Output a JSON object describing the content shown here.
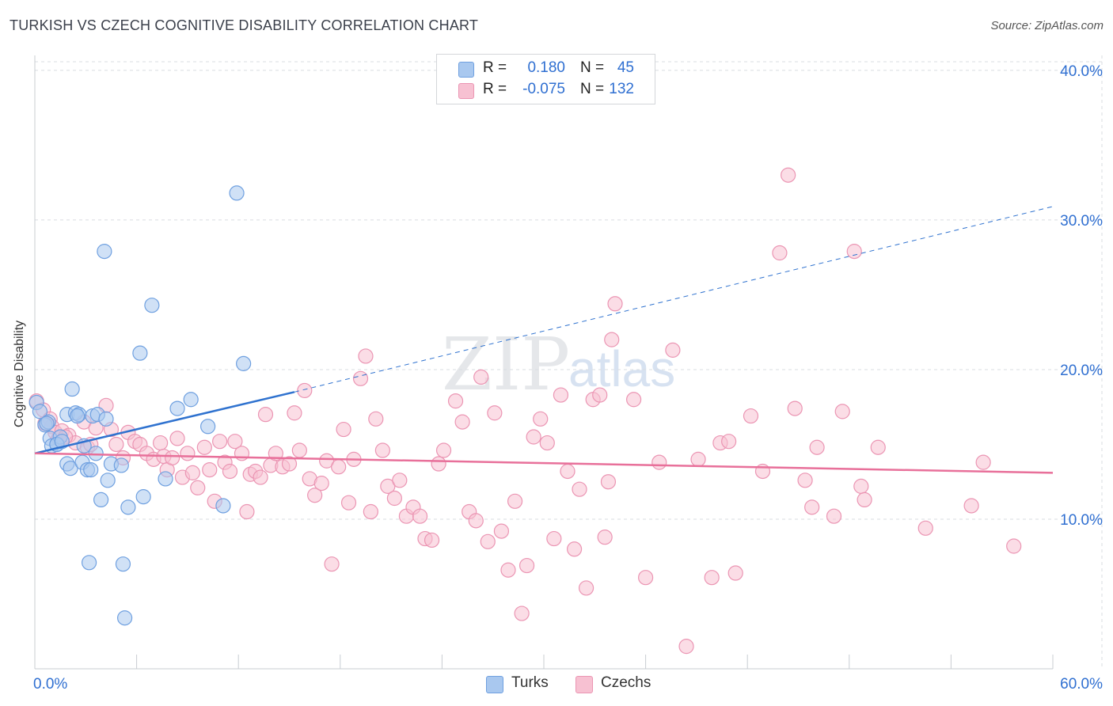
{
  "header": {
    "title": "TURKISH VS CZECH COGNITIVE DISABILITY CORRELATION CHART",
    "source": "Source: ZipAtlas.com"
  },
  "watermark": {
    "zip": "ZIP",
    "atlas": "atlas"
  },
  "stats": {
    "turks": {
      "r_label": "R =",
      "r_value": "0.180",
      "n_label": "N =",
      "n_value": "45"
    },
    "czechs": {
      "r_label": "R =",
      "r_value": "-0.075",
      "n_label": "N =",
      "n_value": "132"
    }
  },
  "legend": {
    "turks": "Turks",
    "czechs": "Czechs"
  },
  "colors": {
    "turks_fill": "#a9c8ef",
    "turks_stroke": "#6fa0e0",
    "turks_line": "#2f72cf",
    "czechs_fill": "#f7c1d2",
    "czechs_stroke": "#eb95b3",
    "czechs_line": "#e8709a",
    "axis_text": "#2f6fd1",
    "grid": "#d9dce1"
  },
  "chart_data": {
    "type": "scatter",
    "title": "TURKISH VS CZECH COGNITIVE DISABILITY CORRELATION CHART",
    "xlabel": "",
    "ylabel": "Cognitive Disability",
    "xlim": [
      0,
      60
    ],
    "ylim": [
      0,
      41
    ],
    "x_tick_labels": [
      "0.0%",
      "60.0%"
    ],
    "y_ticks": [
      10,
      20,
      30,
      40
    ],
    "y_tick_labels": [
      "10.0%",
      "20.0%",
      "30.0%",
      "40.0%"
    ],
    "series": [
      {
        "name": "Turks",
        "trend": {
          "x": [
            0,
            15.3
          ],
          "y": [
            14.4,
            18.5
          ],
          "dashed_to": [
            60,
            30.9
          ]
        },
        "points": [
          [
            0.1,
            17.8
          ],
          [
            0.3,
            17.2
          ],
          [
            0.6,
            16.3
          ],
          [
            0.8,
            16.5
          ],
          [
            0.9,
            15.4
          ],
          [
            1.0,
            14.9
          ],
          [
            1.3,
            15.0
          ],
          [
            1.5,
            15.5
          ],
          [
            1.9,
            13.7
          ],
          [
            2.1,
            13.4
          ],
          [
            1.9,
            17.0
          ],
          [
            2.2,
            18.7
          ],
          [
            2.4,
            17.1
          ],
          [
            2.6,
            17.0
          ],
          [
            2.8,
            13.8
          ],
          [
            2.9,
            14.9
          ],
          [
            3.1,
            13.3
          ],
          [
            3.3,
            13.3
          ],
          [
            3.4,
            16.9
          ],
          [
            3.6,
            14.4
          ],
          [
            3.7,
            17.0
          ],
          [
            3.9,
            11.3
          ],
          [
            4.2,
            16.7
          ],
          [
            4.3,
            12.6
          ],
          [
            4.5,
            13.7
          ],
          [
            4.1,
            27.9
          ],
          [
            5.1,
            13.6
          ],
          [
            5.5,
            10.8
          ],
          [
            6.2,
            21.1
          ],
          [
            6.4,
            11.5
          ],
          [
            6.9,
            24.3
          ],
          [
            7.7,
            12.7
          ],
          [
            8.4,
            17.4
          ],
          [
            9.2,
            18.0
          ],
          [
            10.2,
            16.2
          ],
          [
            11.1,
            10.9
          ],
          [
            11.9,
            31.8
          ],
          [
            12.3,
            20.4
          ],
          [
            3.2,
            7.1
          ],
          [
            5.2,
            7.0
          ],
          [
            5.3,
            3.4
          ],
          [
            1.3,
            15.0
          ],
          [
            0.7,
            16.4
          ],
          [
            2.5,
            16.9
          ],
          [
            1.6,
            15.2
          ]
        ]
      },
      {
        "name": "Czechs",
        "trend": {
          "x": [
            0,
            60
          ],
          "y": [
            14.4,
            13.1
          ]
        },
        "points": [
          [
            0.1,
            17.9
          ],
          [
            0.5,
            17.3
          ],
          [
            0.9,
            16.7
          ],
          [
            1.0,
            16.2
          ],
          [
            1.2,
            15.8
          ],
          [
            1.4,
            15.4
          ],
          [
            1.6,
            15.9
          ],
          [
            2.0,
            15.6
          ],
          [
            2.4,
            15.1
          ],
          [
            2.9,
            16.5
          ],
          [
            3.1,
            14.8
          ],
          [
            3.3,
            15.0
          ],
          [
            3.6,
            16.1
          ],
          [
            4.2,
            17.6
          ],
          [
            4.5,
            16.0
          ],
          [
            4.8,
            15.0
          ],
          [
            5.2,
            14.1
          ],
          [
            5.5,
            15.8
          ],
          [
            5.9,
            15.2
          ],
          [
            6.2,
            15.0
          ],
          [
            6.6,
            14.4
          ],
          [
            7.0,
            14.0
          ],
          [
            7.4,
            15.1
          ],
          [
            7.6,
            14.2
          ],
          [
            7.8,
            13.3
          ],
          [
            8.1,
            14.1
          ],
          [
            8.4,
            15.4
          ],
          [
            8.7,
            12.8
          ],
          [
            9.0,
            14.4
          ],
          [
            9.3,
            13.1
          ],
          [
            9.6,
            12.1
          ],
          [
            10.0,
            14.8
          ],
          [
            10.3,
            13.3
          ],
          [
            10.6,
            11.2
          ],
          [
            10.9,
            15.2
          ],
          [
            11.2,
            13.8
          ],
          [
            11.5,
            13.2
          ],
          [
            11.8,
            15.2
          ],
          [
            12.2,
            14.4
          ],
          [
            12.5,
            10.5
          ],
          [
            12.7,
            13.0
          ],
          [
            13.0,
            13.2
          ],
          [
            13.3,
            12.8
          ],
          [
            13.6,
            17.0
          ],
          [
            13.9,
            13.6
          ],
          [
            14.2,
            14.4
          ],
          [
            14.6,
            13.5
          ],
          [
            15.0,
            13.7
          ],
          [
            15.3,
            17.1
          ],
          [
            15.6,
            14.6
          ],
          [
            15.9,
            18.6
          ],
          [
            16.2,
            12.7
          ],
          [
            16.5,
            11.6
          ],
          [
            16.9,
            12.4
          ],
          [
            17.2,
            13.9
          ],
          [
            17.5,
            7.0
          ],
          [
            17.9,
            13.5
          ],
          [
            18.2,
            16.0
          ],
          [
            18.5,
            11.1
          ],
          [
            18.8,
            14.0
          ],
          [
            19.2,
            19.4
          ],
          [
            19.5,
            20.9
          ],
          [
            19.8,
            10.5
          ],
          [
            20.1,
            16.7
          ],
          [
            20.5,
            14.6
          ],
          [
            20.8,
            12.2
          ],
          [
            21.2,
            11.4
          ],
          [
            21.5,
            12.6
          ],
          [
            21.9,
            10.2
          ],
          [
            22.3,
            10.8
          ],
          [
            22.7,
            10.2
          ],
          [
            23.0,
            8.7
          ],
          [
            23.4,
            8.6
          ],
          [
            23.8,
            13.7
          ],
          [
            24.1,
            14.6
          ],
          [
            24.8,
            17.9
          ],
          [
            25.2,
            16.5
          ],
          [
            25.6,
            10.5
          ],
          [
            26.0,
            9.9
          ],
          [
            26.3,
            19.5
          ],
          [
            26.7,
            8.5
          ],
          [
            27.1,
            17.1
          ],
          [
            27.5,
            9.2
          ],
          [
            27.9,
            6.6
          ],
          [
            28.3,
            11.2
          ],
          [
            28.7,
            3.7
          ],
          [
            29.0,
            6.9
          ],
          [
            29.4,
            15.5
          ],
          [
            29.8,
            16.7
          ],
          [
            30.2,
            15.1
          ],
          [
            30.6,
            8.7
          ],
          [
            31.0,
            18.3
          ],
          [
            31.4,
            13.2
          ],
          [
            31.8,
            8.0
          ],
          [
            32.1,
            12.0
          ],
          [
            32.5,
            5.4
          ],
          [
            32.9,
            18.0
          ],
          [
            33.3,
            18.3
          ],
          [
            33.6,
            8.8
          ],
          [
            33.8,
            12.5
          ],
          [
            34.2,
            24.4
          ],
          [
            34.0,
            22.0
          ],
          [
            35.3,
            18.0
          ],
          [
            36.0,
            6.1
          ],
          [
            36.8,
            13.8
          ],
          [
            37.6,
            21.3
          ],
          [
            38.4,
            1.5
          ],
          [
            39.1,
            14.0
          ],
          [
            39.9,
            6.1
          ],
          [
            40.4,
            15.1
          ],
          [
            40.9,
            15.2
          ],
          [
            41.3,
            6.4
          ],
          [
            42.2,
            16.9
          ],
          [
            42.9,
            13.2
          ],
          [
            43.9,
            27.8
          ],
          [
            44.4,
            33.0
          ],
          [
            44.8,
            17.4
          ],
          [
            45.4,
            12.6
          ],
          [
            45.8,
            10.8
          ],
          [
            46.1,
            14.8
          ],
          [
            47.1,
            10.2
          ],
          [
            47.6,
            17.2
          ],
          [
            48.3,
            27.9
          ],
          [
            48.7,
            12.2
          ],
          [
            48.9,
            11.3
          ],
          [
            49.7,
            14.8
          ],
          [
            52.5,
            9.4
          ],
          [
            55.2,
            10.9
          ],
          [
            55.9,
            13.8
          ],
          [
            57.7,
            8.2
          ],
          [
            0.6,
            16.4
          ],
          [
            1.8,
            15.5
          ]
        ]
      }
    ]
  }
}
